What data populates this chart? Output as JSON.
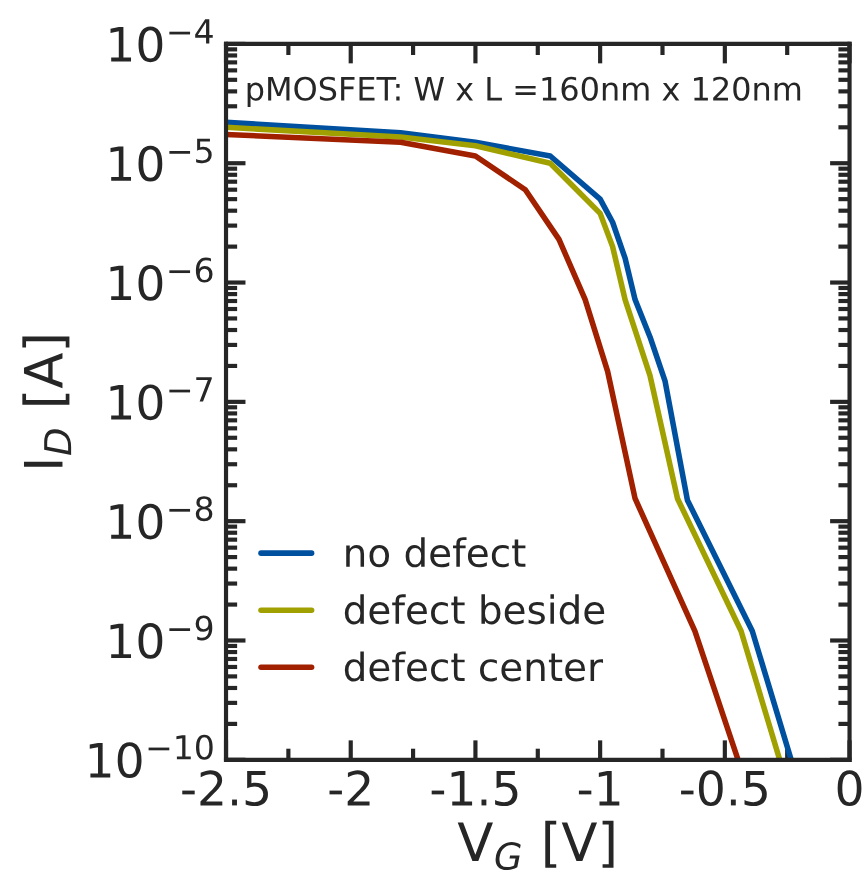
{
  "chart_data": {
    "type": "line",
    "xlabel": "V$_{G}$ [V]",
    "ylabel": "I$_{D}$ [A]",
    "log": "y",
    "annotations": [
      "pMOSFET: W x L =160nm x 120nm"
    ],
    "xlim": [
      -2.5,
      0
    ],
    "xticks": [
      -2.5,
      -2,
      -1.5,
      -1,
      -0.5,
      0
    ],
    "ylim": [
      1e-10,
      0.0001
    ],
    "yticks": [
      {
        "value": 1e-10,
        "label": "10$^{−10}$"
      },
      {
        "value": 1e-09,
        "label": "10$^{−9}$"
      },
      {
        "value": 1e-08,
        "label": "10$^{−8}$"
      },
      {
        "value": 1e-07,
        "label": "10$^{−7}$"
      },
      {
        "value": 1e-06,
        "label": "10$^{−6}$"
      },
      {
        "value": 1e-05,
        "label": "10$^{−5}$"
      },
      {
        "value": 0.0001,
        "label": "10$^{−4}$"
      }
    ],
    "legend": "bottom left",
    "grid": false,
    "marker": "none",
    "line_style": "solid",
    "series": [
      {
        "name": "no defect",
        "color": "#0050a0",
        "x": [
          -2.5,
          -1.8,
          -1.5,
          -1.2,
          -1.0,
          -0.95,
          -0.9,
          -0.86,
          -0.8,
          -0.74,
          -0.65,
          -0.39,
          -0.234
        ],
        "values": [
          2.2e-05,
          1.8e-05,
          1.5e-05,
          1.15e-05,
          5e-06,
          3.2e-06,
          1.6e-06,
          7.2e-07,
          3.5e-07,
          1.5e-07,
          1.5e-08,
          1.2e-09,
          1e-10
        ]
      },
      {
        "name": "defect beside",
        "color": "#a0a000",
        "x": [
          -2.5,
          -1.8,
          -1.5,
          -1.2,
          -1.0,
          -0.95,
          -0.9,
          -0.8,
          -0.69,
          -0.435,
          -0.28
        ],
        "values": [
          2e-05,
          1.66e-05,
          1.4e-05,
          1e-05,
          3.8e-06,
          2e-06,
          7.2e-07,
          1.66e-07,
          1.55e-08,
          1.2e-09,
          1e-10
        ]
      },
      {
        "name": "defect center",
        "color": "#a02000",
        "x": [
          -2.5,
          -1.8,
          -1.5,
          -1.3,
          -1.165,
          -1.06,
          -0.97,
          -0.86,
          -0.62,
          -0.447
        ],
        "values": [
          1.74e-05,
          1.5e-05,
          1.15e-05,
          6e-06,
          2.3e-06,
          7.2e-07,
          1.8e-07,
          1.55e-08,
          1.2e-09,
          1e-10
        ]
      }
    ]
  }
}
